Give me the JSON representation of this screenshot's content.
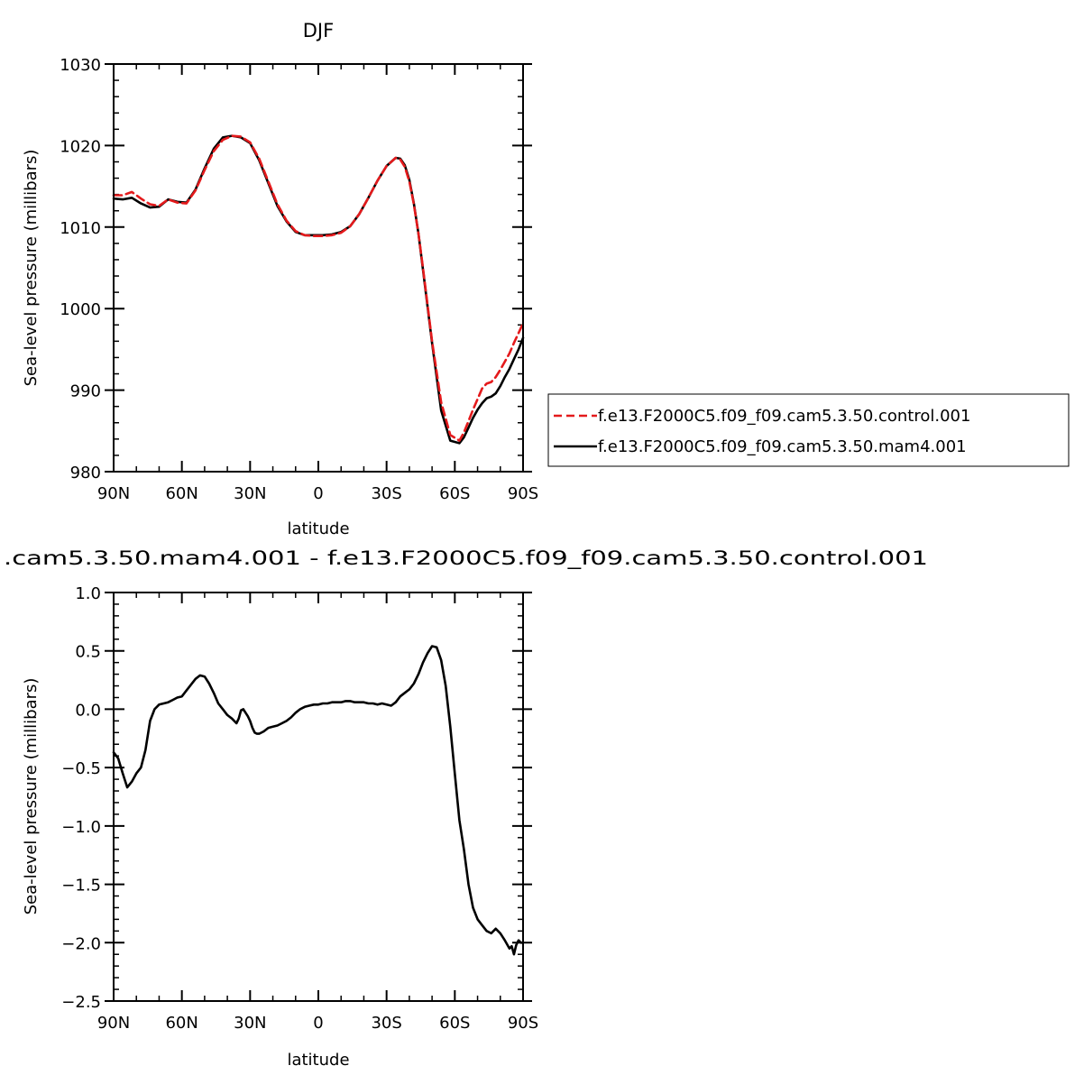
{
  "chart_data": [
    {
      "type": "line",
      "title": "DJF",
      "xlabel": "latitude",
      "ylabel": "Sea-level pressure (millibars)",
      "xlim": [
        90,
        -90
      ],
      "ylim": [
        980,
        1030
      ],
      "x_ticks": [
        {
          "value": 90,
          "label": "90N"
        },
        {
          "value": 60,
          "label": "60N"
        },
        {
          "value": 30,
          "label": "30N"
        },
        {
          "value": 0,
          "label": "0"
        },
        {
          "value": -30,
          "label": "30S"
        },
        {
          "value": -60,
          "label": "60S"
        },
        {
          "value": -90,
          "label": "90S"
        }
      ],
      "y_ticks": [
        {
          "value": 980,
          "label": "980"
        },
        {
          "value": 990,
          "label": "990"
        },
        {
          "value": 1000,
          "label": "1000"
        },
        {
          "value": 1010,
          "label": "1010"
        },
        {
          "value": 1020,
          "label": "1020"
        },
        {
          "value": 1030,
          "label": "1030"
        }
      ],
      "legend_position": "right",
      "series": [
        {
          "name": "f.e13.F2000C5.f09_f09.cam5.3.50.control.001",
          "color": "#e41a1c",
          "dash": true,
          "x": [
            90,
            86,
            82,
            78,
            74,
            70,
            66,
            62,
            58,
            54,
            50,
            46,
            42,
            38,
            34,
            30,
            26,
            22,
            18,
            14,
            10,
            6,
            2,
            -2,
            -6,
            -10,
            -14,
            -18,
            -22,
            -26,
            -30,
            -34,
            -36,
            -38,
            -40,
            -42,
            -44,
            -46,
            -50,
            -54,
            -58,
            -62,
            -64,
            -66,
            -68,
            -70,
            -72,
            -74,
            -76,
            -78,
            -80,
            -82,
            -84,
            -86,
            -88,
            -90
          ],
          "y": [
            1013.9,
            1013.9,
            1014.3,
            1013.5,
            1012.8,
            1012.6,
            1013.4,
            1013.0,
            1012.9,
            1014.5,
            1017.0,
            1019.3,
            1020.7,
            1021.2,
            1021.1,
            1020.4,
            1018.4,
            1015.6,
            1012.8,
            1010.8,
            1009.5,
            1009.0,
            1008.9,
            1008.9,
            1009.0,
            1009.3,
            1010.1,
            1011.6,
            1013.6,
            1015.7,
            1017.5,
            1018.5,
            1018.3,
            1017.4,
            1015.6,
            1012.8,
            1009.2,
            1005.0,
            996.0,
            988.5,
            984.5,
            983.8,
            984.8,
            986.2,
            987.6,
            988.9,
            990.2,
            990.8,
            991.0,
            991.6,
            992.5,
            993.5,
            994.5,
            995.8,
            997.0,
            998.2
          ]
        },
        {
          "name": "f.e13.F2000C5.f09_f09.cam5.3.50.mam4.001",
          "color": "#000000",
          "dash": false,
          "x": [
            90,
            86,
            82,
            78,
            74,
            70,
            66,
            62,
            58,
            54,
            50,
            46,
            42,
            38,
            34,
            30,
            26,
            22,
            18,
            14,
            10,
            6,
            2,
            -2,
            -6,
            -10,
            -14,
            -18,
            -22,
            -26,
            -30,
            -34,
            -36,
            -38,
            -40,
            -42,
            -44,
            -46,
            -50,
            -54,
            -58,
            -62,
            -64,
            -66,
            -68,
            -70,
            -72,
            -74,
            -76,
            -78,
            -80,
            -82,
            -84,
            -86,
            -88,
            -90
          ],
          "y": [
            1013.5,
            1013.4,
            1013.6,
            1012.9,
            1012.4,
            1012.5,
            1013.4,
            1013.1,
            1013.0,
            1014.6,
            1017.2,
            1019.6,
            1021.0,
            1021.2,
            1021.0,
            1020.3,
            1018.2,
            1015.4,
            1012.6,
            1010.7,
            1009.4,
            1009.0,
            1009.0,
            1009.0,
            1009.1,
            1009.4,
            1010.1,
            1011.6,
            1013.6,
            1015.7,
            1017.5,
            1018.5,
            1018.4,
            1017.6,
            1015.8,
            1012.9,
            1009.2,
            1004.8,
            995.8,
            987.5,
            983.8,
            983.5,
            984.2,
            985.4,
            986.6,
            987.6,
            988.4,
            989.0,
            989.2,
            989.6,
            990.5,
            991.6,
            992.6,
            993.8,
            995.0,
            996.4
          ]
        }
      ]
    },
    {
      "type": "line",
      "title": ".cam5.3.50.mam4.001  -  f.e13.F2000C5.f09_f09.cam5.3.50.control.001",
      "xlabel": "latitude",
      "ylabel": "Sea-level pressure (millibars)",
      "xlim": [
        90,
        -90
      ],
      "ylim": [
        -2.5,
        1.0
      ],
      "x_ticks": [
        {
          "value": 90,
          "label": "90N"
        },
        {
          "value": 60,
          "label": "60N"
        },
        {
          "value": 30,
          "label": "30N"
        },
        {
          "value": 0,
          "label": "0"
        },
        {
          "value": -30,
          "label": "30S"
        },
        {
          "value": -60,
          "label": "60S"
        },
        {
          "value": -90,
          "label": "90S"
        }
      ],
      "y_ticks": [
        {
          "value": -2.5,
          "label": "−2.5"
        },
        {
          "value": -2.0,
          "label": "−2.0"
        },
        {
          "value": -1.5,
          "label": "−1.5"
        },
        {
          "value": -1.0,
          "label": "−1.0"
        },
        {
          "value": -0.5,
          "label": "−0.5"
        },
        {
          "value": 0.0,
          "label": "0.0"
        },
        {
          "value": 0.5,
          "label": "0.5"
        },
        {
          "value": 1.0,
          "label": "1.0"
        }
      ],
      "series": [
        {
          "color": "#000000",
          "dash": false,
          "x": [
            90,
            88,
            86,
            84,
            82,
            80,
            78,
            76,
            74,
            72,
            70,
            68,
            66,
            64,
            62,
            60,
            58,
            56,
            54,
            52,
            50,
            48,
            46,
            44,
            42,
            40,
            38,
            36,
            35,
            34,
            33,
            32,
            31,
            30,
            29,
            28,
            27,
            26,
            24,
            22,
            20,
            18,
            16,
            14,
            12,
            10,
            8,
            6,
            4,
            2,
            0,
            -2,
            -4,
            -6,
            -8,
            -10,
            -12,
            -14,
            -16,
            -18,
            -20,
            -22,
            -24,
            -26,
            -28,
            -30,
            -32,
            -34,
            -36,
            -38,
            -40,
            -42,
            -44,
            -46,
            -48,
            -50,
            -52,
            -54,
            -56,
            -58,
            -60,
            -62,
            -64,
            -66,
            -68,
            -70,
            -72,
            -74,
            -76,
            -78,
            -80,
            -82,
            -84,
            -85,
            -86,
            -87,
            -88,
            -89,
            -90
          ],
          "y": [
            -0.37,
            -0.42,
            -0.55,
            -0.67,
            -0.62,
            -0.55,
            -0.5,
            -0.35,
            -0.1,
            0.0,
            0.04,
            0.05,
            0.06,
            0.08,
            0.1,
            0.11,
            0.16,
            0.21,
            0.26,
            0.29,
            0.28,
            0.22,
            0.14,
            0.05,
            0.0,
            -0.05,
            -0.08,
            -0.12,
            -0.08,
            -0.01,
            0.0,
            -0.03,
            -0.06,
            -0.1,
            -0.16,
            -0.2,
            -0.21,
            -0.21,
            -0.19,
            -0.16,
            -0.15,
            -0.14,
            -0.12,
            -0.1,
            -0.07,
            -0.03,
            0.0,
            0.02,
            0.03,
            0.04,
            0.04,
            0.05,
            0.05,
            0.06,
            0.06,
            0.06,
            0.07,
            0.07,
            0.06,
            0.06,
            0.06,
            0.05,
            0.05,
            0.04,
            0.05,
            0.04,
            0.03,
            0.06,
            0.11,
            0.14,
            0.17,
            0.22,
            0.3,
            0.4,
            0.48,
            0.54,
            0.53,
            0.42,
            0.2,
            -0.15,
            -0.55,
            -0.95,
            -1.2,
            -1.5,
            -1.7,
            -1.8,
            -1.85,
            -1.9,
            -1.92,
            -1.88,
            -1.92,
            -1.98,
            -2.05,
            -2.03,
            -2.1,
            -2.02,
            -1.98,
            -2.0,
            -2.0
          ]
        }
      ]
    }
  ]
}
